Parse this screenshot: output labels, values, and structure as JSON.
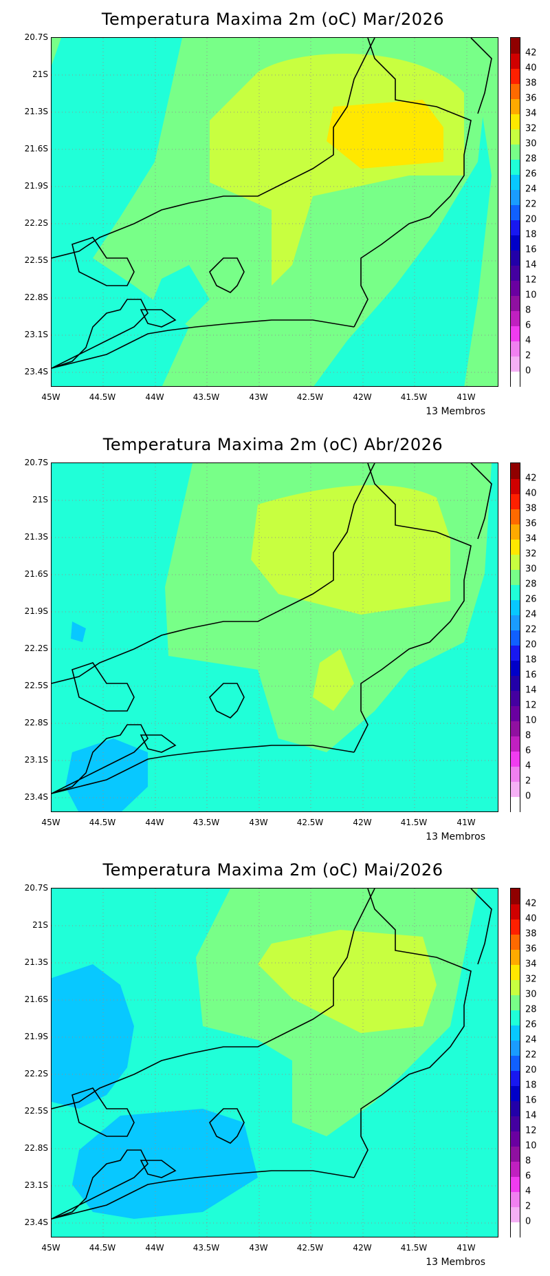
{
  "panels": [
    {
      "title": "Temperatura Maxima 2m (oC) Mar/2026",
      "note": "13 Membros"
    },
    {
      "title": "Temperatura Maxima 2m (oC) Abr/2026",
      "note": "13 Membros"
    },
    {
      "title": "Temperatura Maxima 2m (oC) Mai/2026",
      "note": "13 Membros"
    }
  ],
  "y_ticks": [
    "20.7S",
    "21S",
    "21.3S",
    "21.6S",
    "21.9S",
    "22.2S",
    "22.5S",
    "22.8S",
    "23.1S",
    "23.4S"
  ],
  "x_ticks": [
    "45W",
    "44.5W",
    "44W",
    "43.5W",
    "43W",
    "42.5W",
    "42W",
    "41.5W",
    "41W"
  ],
  "colorbar": {
    "labels": [
      "0",
      "2",
      "4",
      "6",
      "8",
      "10",
      "12",
      "14",
      "16",
      "18",
      "20",
      "22",
      "24",
      "26",
      "28",
      "30",
      "32",
      "34",
      "36",
      "38",
      "40",
      "42"
    ],
    "colors": [
      "#ffffff",
      "#f5b0f5",
      "#f080f0",
      "#f03cf0",
      "#c020c0",
      "#9010a0",
      "#6a00a0",
      "#4400a0",
      "#2200a8",
      "#0000c8",
      "#1818f0",
      "#1060ff",
      "#1a9cff",
      "#08c8ff",
      "#20ffd8",
      "#78ff88",
      "#c8ff40",
      "#ffe800",
      "#ffaa00",
      "#ff6a00",
      "#ff2000",
      "#d00000",
      "#900000"
    ]
  }
}
